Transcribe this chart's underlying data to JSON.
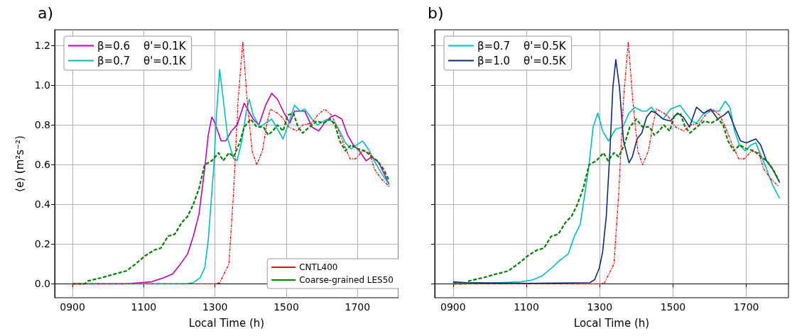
{
  "chart_data": [
    {
      "type": "line",
      "title": "a)",
      "xlabel": "Local Time (h)",
      "ylabel": "⟨e⟩ (m²s⁻²)",
      "xlim": [
        850,
        1815
      ],
      "ylim": [
        -0.07,
        1.28
      ],
      "xticks": [
        {
          "value": 900,
          "label": "0900"
        },
        1100,
        1300,
        1500,
        1700
      ],
      "yticks": [
        {
          "value": 0,
          "label": "0.0"
        },
        0.2,
        0.4,
        0.6,
        0.8,
        {
          "value": 1.0,
          "label": "1.0"
        },
        1.2
      ],
      "grid": true,
      "marker": "none",
      "legend": [
        "top left",
        "bottom right"
      ],
      "series": [
        {
          "name": "β=0.6    θ'=0.1K",
          "color": "#bf00bf",
          "line_style": "solid",
          "x": [
            900,
            1050,
            1077,
            1122,
            1155,
            1181,
            1203,
            1223,
            1239,
            1255,
            1271,
            1281,
            1291,
            1300,
            1317,
            1330,
            1346,
            1362,
            1382,
            1394,
            1407,
            1423,
            1442,
            1459,
            1475,
            1494,
            1510,
            1523,
            1539,
            1552,
            1572,
            1591,
            1607,
            1624,
            1637,
            1656,
            1672,
            1688,
            1705,
            1724,
            1740,
            1760,
            1789
          ],
          "values": [
            0,
            0,
            0.004,
            0.01,
            0.03,
            0.05,
            0.1,
            0.15,
            0.24,
            0.35,
            0.58,
            0.75,
            0.84,
            0.81,
            0.72,
            0.72,
            0.77,
            0.8,
            0.91,
            0.87,
            0.83,
            0.8,
            0.9,
            0.96,
            0.93,
            0.86,
            0.81,
            0.87,
            0.87,
            0.87,
            0.79,
            0.77,
            0.81,
            0.84,
            0.85,
            0.83,
            0.75,
            0.7,
            0.67,
            0.62,
            0.64,
            0.61,
            0.5
          ]
        },
        {
          "name": "β=0.7    θ'=0.1K",
          "color": "#00bfbf",
          "line_style": "solid",
          "x": [
            900,
            1220,
            1239,
            1258,
            1271,
            1281,
            1291,
            1297,
            1304,
            1313,
            1323,
            1336,
            1352,
            1362,
            1375,
            1388,
            1396,
            1407,
            1426,
            1442,
            1459,
            1475,
            1491,
            1507,
            1523,
            1539,
            1552,
            1572,
            1588,
            1604,
            1617,
            1637,
            1650,
            1666,
            1682,
            1698,
            1714,
            1730,
            1747,
            1766,
            1789
          ],
          "values": [
            0,
            0,
            0.006,
            0.03,
            0.08,
            0.22,
            0.46,
            0.6,
            0.85,
            1.08,
            0.93,
            0.73,
            0.63,
            0.62,
            0.72,
            0.87,
            0.93,
            0.85,
            0.79,
            0.81,
            0.83,
            0.78,
            0.73,
            0.81,
            0.9,
            0.87,
            0.88,
            0.83,
            0.8,
            0.82,
            0.83,
            0.81,
            0.77,
            0.71,
            0.68,
            0.7,
            0.72,
            0.68,
            0.62,
            0.56,
            0.5
          ]
        },
        {
          "name": "CNTL400",
          "color": "#ff0000",
          "line_style": "dashdot",
          "x": [
            900,
            1300,
            1313,
            1339,
            1352,
            1365,
            1378,
            1390,
            1404,
            1417,
            1433,
            1446,
            1455,
            1475,
            1488,
            1507,
            1530,
            1546,
            1572,
            1588,
            1607,
            1627,
            1643,
            1662,
            1679,
            1695,
            1714,
            1734,
            1747,
            1766,
            1789
          ],
          "values": [
            0,
            0,
            0.005,
            0.1,
            0.46,
            0.93,
            1.22,
            0.93,
            0.67,
            0.6,
            0.67,
            0.81,
            0.88,
            0.86,
            0.84,
            0.79,
            0.77,
            0.8,
            0.81,
            0.85,
            0.88,
            0.85,
            0.79,
            0.7,
            0.63,
            0.63,
            0.67,
            0.66,
            0.58,
            0.53,
            0.49
          ]
        },
        {
          "name": "Coarse-grained LES50",
          "color": "#008000",
          "line_style": "dashed",
          "x": [
            900,
            934,
            944,
            980,
            1019,
            1051,
            1077,
            1103,
            1129,
            1148,
            1168,
            1187,
            1207,
            1223,
            1239,
            1255,
            1271,
            1291,
            1310,
            1323,
            1339,
            1352,
            1369,
            1382,
            1400,
            1417,
            1436,
            1449,
            1462,
            1475,
            1491,
            1504,
            1520,
            1533,
            1546,
            1565,
            1585,
            1604,
            1624,
            1637,
            1650,
            1666,
            1682,
            1701,
            1721,
            1740,
            1756,
            1772,
            1789
          ],
          "values": [
            0,
            0,
            0.015,
            0.03,
            0.05,
            0.065,
            0.1,
            0.14,
            0.17,
            0.18,
            0.24,
            0.25,
            0.31,
            0.34,
            0.4,
            0.48,
            0.6,
            0.62,
            0.66,
            0.62,
            0.66,
            0.64,
            0.71,
            0.79,
            0.83,
            0.79,
            0.79,
            0.75,
            0.77,
            0.8,
            0.77,
            0.85,
            0.86,
            0.79,
            0.76,
            0.79,
            0.82,
            0.81,
            0.83,
            0.8,
            0.72,
            0.67,
            0.7,
            0.68,
            0.67,
            0.64,
            0.62,
            0.58,
            0.52
          ]
        }
      ]
    },
    {
      "type": "line",
      "title": "b)",
      "xlabel": "Local Time (h)",
      "xlim": [
        850,
        1815
      ],
      "ylim": [
        -0.07,
        1.28
      ],
      "xticks": [
        {
          "value": 900,
          "label": "0900"
        },
        1100,
        1300,
        1500,
        1700
      ],
      "yticks": [
        {
          "value": 0,
          "label": null
        },
        {
          "value": 0.2,
          "label": null
        },
        {
          "value": 0.4,
          "label": null
        },
        {
          "value": 0.6,
          "label": null
        },
        {
          "value": 0.8,
          "label": null
        },
        {
          "value": 1.0,
          "label": null
        },
        {
          "value": 1.2,
          "label": null
        }
      ],
      "tick_labels": "x",
      "grid": true,
      "marker": "none",
      "legend": [
        "top left"
      ],
      "series": [
        {
          "name": "β=0.7    θ'=0.5K",
          "color": "#00bfbf",
          "line_style": "solid",
          "x": [
            900,
            1000,
            1085,
            1117,
            1143,
            1169,
            1192,
            1214,
            1231,
            1247,
            1260,
            1271,
            1282,
            1295,
            1308,
            1324,
            1344,
            1363,
            1380,
            1396,
            1415,
            1428,
            1441,
            1454,
            1473,
            1493,
            1506,
            1519,
            1535,
            1551,
            1564,
            1580,
            1596,
            1609,
            1626,
            1642,
            1655,
            1668,
            1681,
            1697,
            1713,
            1726,
            1739,
            1755,
            1771,
            1791
          ],
          "values": [
            0.005,
            0.004,
            0.01,
            0.02,
            0.04,
            0.08,
            0.12,
            0.15,
            0.24,
            0.3,
            0.46,
            0.6,
            0.79,
            0.86,
            0.77,
            0.72,
            0.78,
            0.79,
            0.86,
            0.89,
            0.87,
            0.87,
            0.89,
            0.86,
            0.83,
            0.88,
            0.89,
            0.9,
            0.86,
            0.82,
            0.81,
            0.85,
            0.87,
            0.87,
            0.87,
            0.92,
            0.89,
            0.77,
            0.7,
            0.67,
            0.7,
            0.71,
            0.65,
            0.58,
            0.5,
            0.43
          ]
        },
        {
          "name": "β=1.0    θ'=0.5K",
          "color": "#0a2a7a",
          "line_style": "solid",
          "x": [
            900,
            936,
            1098,
            1273,
            1286,
            1299,
            1308,
            1318,
            1328,
            1336,
            1344,
            1354,
            1365,
            1380,
            1389,
            1402,
            1415,
            1428,
            1441,
            1454,
            1473,
            1493,
            1512,
            1528,
            1545,
            1564,
            1583,
            1603,
            1622,
            1639,
            1651,
            1668,
            1684,
            1700,
            1713,
            1726,
            1739,
            1755,
            1771,
            1791
          ],
          "values": [
            0.01,
            0.006,
            0.002,
            0.006,
            0.02,
            0.08,
            0.16,
            0.34,
            0.67,
            0.99,
            1.13,
            0.99,
            0.72,
            0.61,
            0.64,
            0.73,
            0.76,
            0.84,
            0.87,
            0.86,
            0.83,
            0.82,
            0.86,
            0.84,
            0.79,
            0.89,
            0.86,
            0.88,
            0.83,
            0.85,
            0.87,
            0.79,
            0.72,
            0.71,
            0.72,
            0.73,
            0.7,
            0.62,
            0.58,
            0.51
          ]
        },
        {
          "color": "#ff0000",
          "line_style": "dashdot",
          "x": [
            900,
            1300,
            1313,
            1339,
            1352,
            1365,
            1378,
            1390,
            1404,
            1417,
            1433,
            1446,
            1455,
            1475,
            1488,
            1507,
            1530,
            1546,
            1572,
            1588,
            1607,
            1627,
            1643,
            1662,
            1679,
            1695,
            1714,
            1734,
            1747,
            1766,
            1789
          ],
          "values": [
            0,
            0,
            0.005,
            0.1,
            0.46,
            0.93,
            1.22,
            0.93,
            0.67,
            0.6,
            0.67,
            0.81,
            0.88,
            0.86,
            0.84,
            0.79,
            0.77,
            0.8,
            0.81,
            0.85,
            0.88,
            0.85,
            0.79,
            0.7,
            0.63,
            0.63,
            0.67,
            0.66,
            0.58,
            0.53,
            0.49
          ]
        },
        {
          "color": "#008000",
          "line_style": "dashed",
          "x": [
            900,
            934,
            944,
            980,
            1019,
            1051,
            1077,
            1103,
            1129,
            1148,
            1168,
            1187,
            1207,
            1223,
            1239,
            1255,
            1271,
            1291,
            1310,
            1323,
            1339,
            1352,
            1369,
            1382,
            1400,
            1417,
            1436,
            1449,
            1462,
            1475,
            1491,
            1504,
            1520,
            1533,
            1546,
            1565,
            1585,
            1604,
            1624,
            1637,
            1650,
            1666,
            1682,
            1701,
            1721,
            1740,
            1756,
            1772,
            1789
          ],
          "values": [
            0,
            0,
            0.015,
            0.03,
            0.05,
            0.065,
            0.1,
            0.14,
            0.17,
            0.18,
            0.24,
            0.25,
            0.31,
            0.34,
            0.4,
            0.48,
            0.6,
            0.62,
            0.66,
            0.62,
            0.66,
            0.64,
            0.71,
            0.79,
            0.83,
            0.79,
            0.79,
            0.75,
            0.77,
            0.8,
            0.77,
            0.85,
            0.86,
            0.79,
            0.76,
            0.79,
            0.82,
            0.81,
            0.83,
            0.8,
            0.72,
            0.67,
            0.7,
            0.68,
            0.67,
            0.64,
            0.62,
            0.58,
            0.52
          ]
        }
      ]
    }
  ]
}
